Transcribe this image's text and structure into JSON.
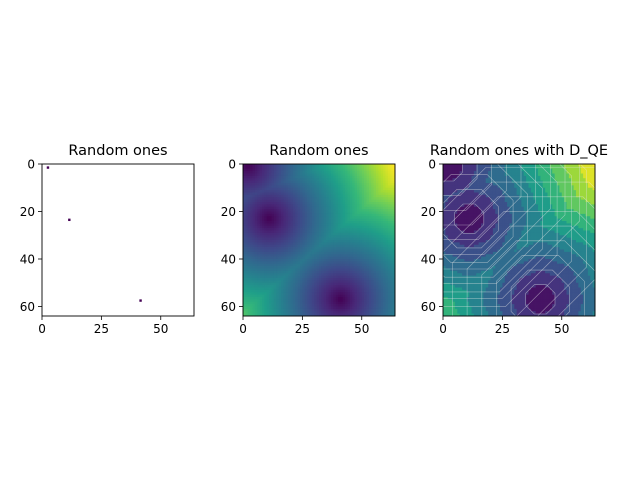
{
  "chart_data": [
    {
      "type": "heatmap",
      "title": "Random ones",
      "grid_size": 64,
      "xlim": [
        0,
        64
      ],
      "ylim": [
        64,
        0
      ],
      "xticks": [
        "0",
        "25",
        "50"
      ],
      "yticks": [
        "0",
        "20",
        "40",
        "60"
      ],
      "colormap": "viridis",
      "grid": false,
      "ones": [
        [
          2,
          1
        ],
        [
          11,
          23
        ],
        [
          41,
          57
        ]
      ]
    },
    {
      "type": "heatmap",
      "title": "Random ones",
      "grid_size": 64,
      "xlim": [
        0,
        64
      ],
      "ylim": [
        64,
        0
      ],
      "xticks": [
        "0",
        "25",
        "50"
      ],
      "yticks": [
        "0",
        "20",
        "40",
        "60"
      ],
      "colormap": "viridis",
      "grid": false,
      "sources": [
        [
          2,
          1
        ],
        [
          11,
          23
        ],
        [
          41,
          57
        ]
      ]
    },
    {
      "type": "heatmap",
      "title": "Random ones with D_QE",
      "grid_size": 64,
      "xlim": [
        0,
        64
      ],
      "ylim": [
        64,
        0
      ],
      "xticks": [
        "0",
        "25",
        "50"
      ],
      "yticks": [
        "0",
        "20",
        "40",
        "60"
      ],
      "colormap": "viridis",
      "grid": false,
      "contours": true,
      "sources": [
        [
          2,
          1
        ],
        [
          11,
          23
        ],
        [
          41,
          57
        ]
      ]
    }
  ],
  "colors": {
    "viridis": [
      "#440154",
      "#482878",
      "#3e4989",
      "#31688e",
      "#26828e",
      "#1f9e89",
      "#35b779",
      "#6ece58",
      "#b5de2b",
      "#fde725"
    ],
    "contour_line": "#e8e8e8"
  }
}
